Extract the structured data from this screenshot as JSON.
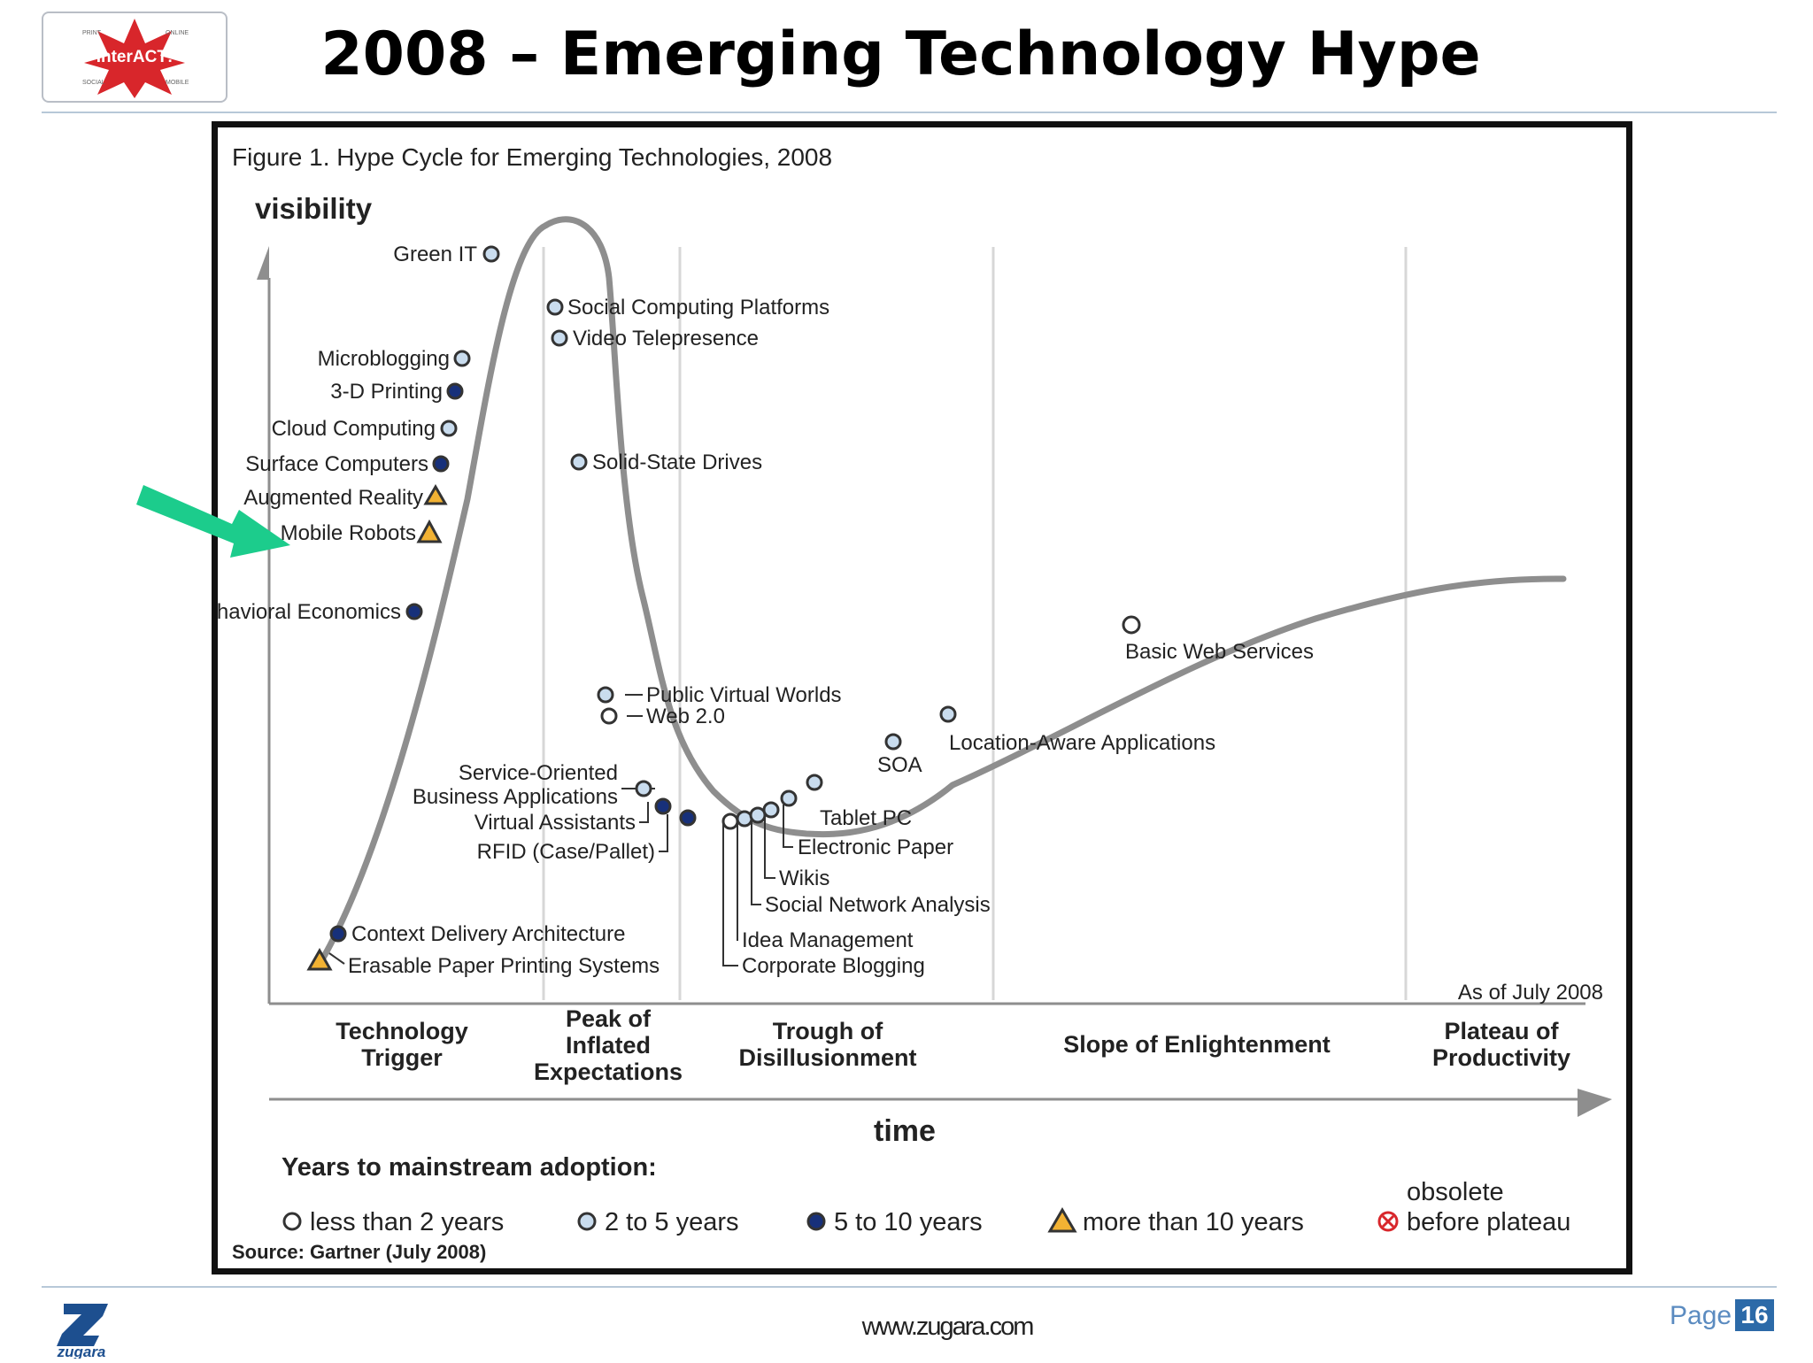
{
  "header": {
    "title": "2008 – Emerging Technology Hype",
    "logo": {
      "top_left": "PRINT",
      "top_right": "ONLINE",
      "name": "InterACT!",
      "bottom_left": "SOCIAL",
      "bottom_right": "MOBILE"
    }
  },
  "figure": {
    "caption": "Figure 1. Hype Cycle for Emerging Technologies, 2008",
    "y_axis": "visibility",
    "x_axis": "time",
    "as_of": "As of July 2008",
    "source": "Source: Gartner (July 2008)",
    "phases": [
      {
        "lines": [
          "Technology",
          "Trigger"
        ]
      },
      {
        "lines": [
          "Peak of",
          "Inflated",
          "Expectations"
        ]
      },
      {
        "lines": [
          "Trough of",
          "Disillusionment"
        ]
      },
      {
        "lines": [
          "Slope of Enlightenment"
        ]
      },
      {
        "lines": [
          "Plateau of",
          "Productivity"
        ]
      }
    ],
    "legend": {
      "title": "Years to mainstream adoption:",
      "items": [
        {
          "marker": "open-circle",
          "label": "less than 2 years"
        },
        {
          "marker": "light-blue-circle",
          "label": "2 to 5 years"
        },
        {
          "marker": "dark-blue-circle",
          "label": "5 to 10 years"
        },
        {
          "marker": "triangle",
          "label": "more than 10 years"
        },
        {
          "marker": "crossed-circle",
          "label_lines": [
            "obsolete",
            "before plateau"
          ]
        }
      ]
    },
    "technologies": [
      {
        "name": "Green IT",
        "adoption": "2 to 5 years"
      },
      {
        "name": "Social Computing Platforms",
        "adoption": "2 to 5 years"
      },
      {
        "name": "Video Telepresence",
        "adoption": "2 to 5 years"
      },
      {
        "name": "Microblogging",
        "adoption": "2 to 5 years"
      },
      {
        "name": "3-D Printing",
        "adoption": "5 to 10 years"
      },
      {
        "name": "Cloud Computing",
        "adoption": "2 to 5 years"
      },
      {
        "name": "Surface Computers",
        "adoption": "5 to 10 years"
      },
      {
        "name": "Augmented Reality",
        "adoption": "more than 10 years"
      },
      {
        "name": "Mobile Robots",
        "adoption": "more than 10 years"
      },
      {
        "name": "Behavioral Economics",
        "adoption": "5 to 10 years"
      },
      {
        "name": "Solid-State Drives",
        "adoption": "2 to 5 years"
      },
      {
        "name": "Public Virtual Worlds",
        "adoption": "2 to 5 years"
      },
      {
        "name": "Web 2.0",
        "adoption": "less than 2 years"
      },
      {
        "name": "Service-Oriented Business Applications",
        "adoption": "2 to 5 years"
      },
      {
        "name": "Virtual Assistants",
        "adoption": "5 to 10 years"
      },
      {
        "name": "RFID (Case/Pallet)",
        "adoption": "5 to 10 years"
      },
      {
        "name": "Context Delivery Architecture",
        "adoption": "5 to 10 years"
      },
      {
        "name": "Erasable Paper Printing Systems",
        "adoption": "more than 10 years"
      },
      {
        "name": "Tablet PC",
        "adoption": "2 to 5 years"
      },
      {
        "name": "Electronic Paper",
        "adoption": "2 to 5 years"
      },
      {
        "name": "Wikis",
        "adoption": "2 to 5 years"
      },
      {
        "name": "Social Network Analysis",
        "adoption": "2 to 5 years"
      },
      {
        "name": "Idea Management",
        "adoption": "2 to 5 years"
      },
      {
        "name": "Corporate Blogging",
        "adoption": "less than 2 years"
      },
      {
        "name": "SOA",
        "adoption": "2 to 5 years"
      },
      {
        "name": "Location-Aware Applications",
        "adoption": "2 to 5 years"
      },
      {
        "name": "Basic Web Services",
        "adoption": "less than 2 years"
      }
    ],
    "highlighted": "Augmented Reality"
  },
  "footer": {
    "url": "www.zugara.com",
    "page_label": "Page",
    "page_number": "16",
    "brand": "zugara"
  },
  "colors": {
    "curve": "#8e8e8e",
    "dark_marker": "#17307a",
    "light_marker": "#c9dcee",
    "triangle": "#f2b233",
    "arrow": "#1ccc8c",
    "logo_red": "#d8262b"
  }
}
